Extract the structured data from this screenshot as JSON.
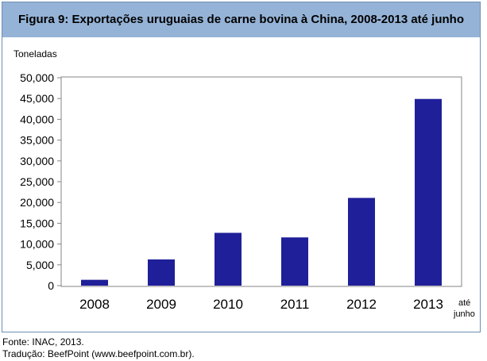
{
  "chart_data": {
    "type": "bar",
    "title": "Figura 9: Exportações uruguaias de carne bovina à China, 2008-2013 até junho",
    "ylabel": "Toneladas",
    "xlabel": "",
    "categories": [
      "2008",
      "2009",
      "2010",
      "2011",
      "2012",
      "2013"
    ],
    "category_notes": [
      "",
      "",
      "",
      "",
      "",
      "até junho"
    ],
    "values": [
      1400,
      6300,
      12700,
      11600,
      21100,
      44900
    ],
    "ylim": [
      0,
      50000
    ],
    "yticks": [
      "0",
      "5,000",
      "10,000",
      "15,000",
      "20,000",
      "25,000",
      "30,000",
      "35,000",
      "40,000",
      "45,000",
      "50,000"
    ],
    "grid": false,
    "legend": "none",
    "bar_color": "#1f1f99"
  },
  "source_lines": [
    "Fonte: INAC, 2013.",
    "Tradução: BeefPoint (www.beefpoint.com.br)."
  ],
  "colors": {
    "title_background": "#95b3d7",
    "frame_border": "#6f8fb1",
    "plot_border": "#868686"
  }
}
